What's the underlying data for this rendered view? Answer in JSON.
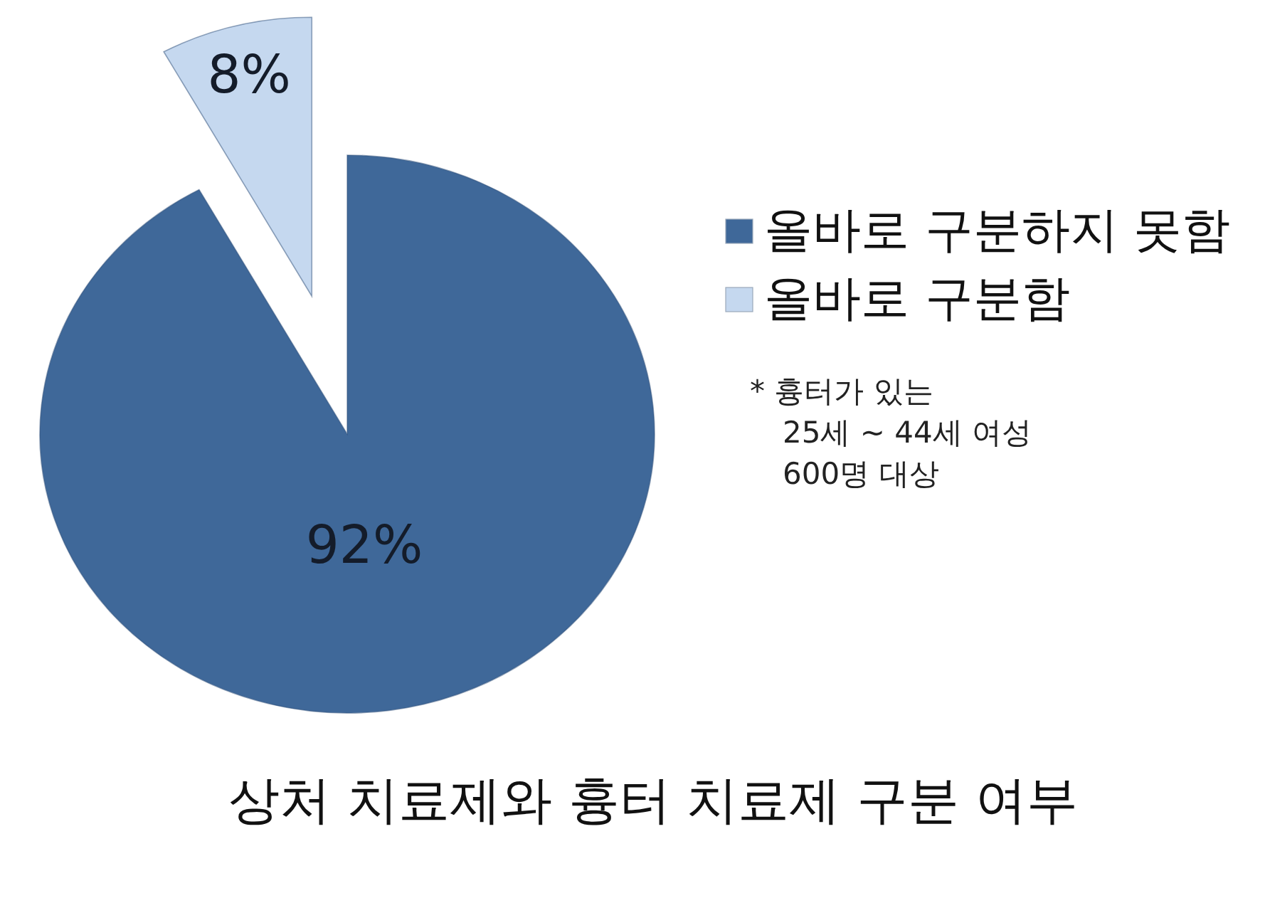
{
  "chart_data": {
    "type": "pie",
    "title": "상처 치료제와 흉터 치료제 구분 여부",
    "categories": [
      "올바로 구분하지 못함",
      "올바로 구분함"
    ],
    "values": [
      92,
      8
    ],
    "colors": [
      "#3f6899",
      "#c5d8ef"
    ],
    "value_labels": [
      "92%",
      "8%"
    ],
    "legend": "right",
    "annotations": [
      "* 흉터가 있는\n25세 ~ 44세 여성\n600명 대상"
    ]
  }
}
